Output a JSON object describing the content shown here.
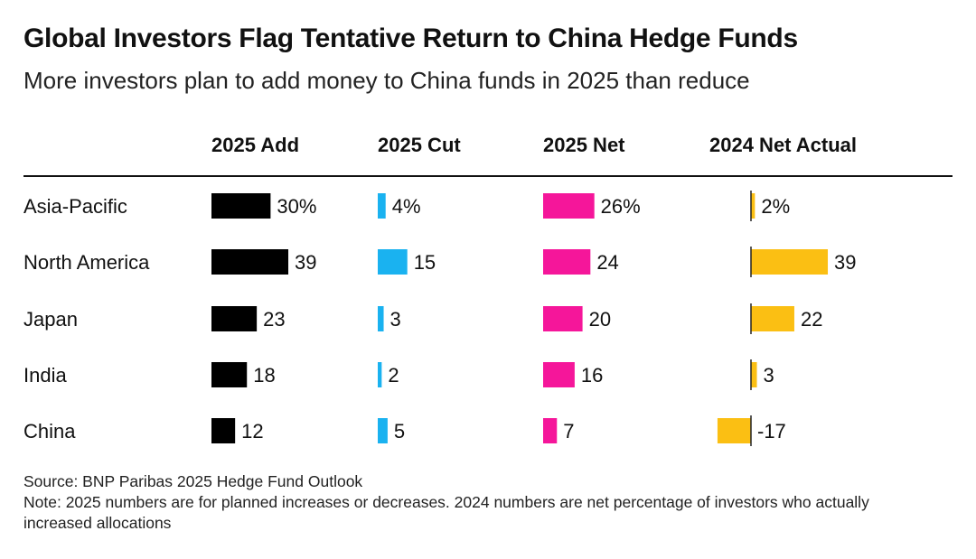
{
  "header": {
    "title": "Global Investors Flag Tentative Return to China Hedge Funds",
    "subtitle": "More investors plan to add money to China funds in 2025 than reduce"
  },
  "footer": {
    "source": "Source: BNP Paribas 2025 Hedge Fund Outlook",
    "note": "Note: 2025 numbers are for planned increases or decreases. 2024 numbers are net percentage of investors who actually increased allocations"
  },
  "chart_data": {
    "type": "bar",
    "orientation": "horizontal",
    "layout": "small-multiples-table",
    "categories": [
      "Asia-Pacific",
      "North America",
      "Japan",
      "India",
      "China"
    ],
    "series": [
      {
        "name": "2025 Add",
        "values": [
          30,
          39,
          23,
          18,
          12
        ],
        "labels": [
          "30%",
          "39",
          "23",
          "18",
          "12"
        ],
        "color": "#000000"
      },
      {
        "name": "2025 Cut",
        "values": [
          4,
          15,
          3,
          2,
          5
        ],
        "labels": [
          "4%",
          "15",
          "3",
          "2",
          "5"
        ],
        "color": "#1ab2f0"
      },
      {
        "name": "2025 Net",
        "values": [
          26,
          24,
          20,
          16,
          7
        ],
        "labels": [
          "26%",
          "24",
          "20",
          "16",
          "7"
        ],
        "color": "#f5169a"
      },
      {
        "name": "2024 Net Actual",
        "values": [
          2,
          39,
          22,
          3,
          -17
        ],
        "labels": [
          "2%",
          "39",
          "22",
          "3",
          "-17"
        ],
        "color": "#fbbf13"
      }
    ],
    "grid": false,
    "legend": "none"
  }
}
